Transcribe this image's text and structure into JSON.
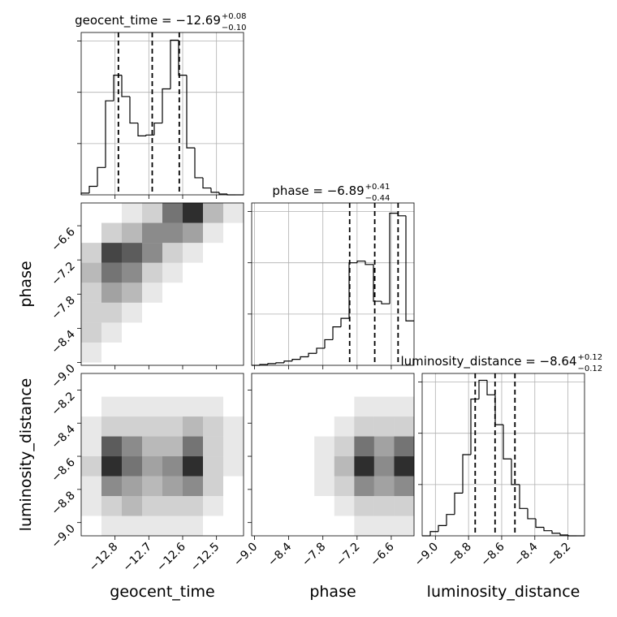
{
  "chart_data": [
    {
      "type": "histogram",
      "title": "geocent_time = −12.69",
      "title_sup": "+0.08",
      "title_sub": "−0.10",
      "bins": [
        -12.9,
        -12.876,
        -12.852,
        -12.828,
        -12.804,
        -12.78,
        -12.756,
        -12.732,
        -12.708,
        -12.684,
        -12.66,
        -12.636,
        -12.612,
        -12.588,
        -12.564,
        -12.54,
        -12.516,
        -12.492,
        -12.468,
        -12.444,
        -12.42
      ],
      "counts": [
        2,
        10,
        32,
        110,
        140,
        115,
        84,
        69,
        70,
        84,
        124,
        181,
        140,
        55,
        20,
        8,
        3,
        1,
        0,
        0
      ],
      "quantiles": [
        -12.79,
        -12.69,
        -12.61
      ],
      "xlim": [
        -12.9,
        -12.42
      ],
      "xticks": [
        -12.8,
        -12.7,
        -12.6,
        -12.5
      ],
      "ylim": [
        0,
        190
      ],
      "yticks": [
        60,
        120,
        180
      ],
      "grid": true
    },
    {
      "type": "hist2d",
      "ylabel": "phase",
      "xbins": [
        -12.9,
        -12.84,
        -12.78,
        -12.72,
        -12.66,
        -12.6,
        -12.54,
        -12.48,
        -12.42
      ],
      "ybins": [
        -9.0,
        -8.65,
        -8.3,
        -7.95,
        -7.6,
        -7.25,
        -6.9,
        -6.55,
        -6.2
      ],
      "z": [
        [
          1,
          0,
          0,
          0,
          0,
          0,
          0,
          0
        ],
        [
          2,
          1,
          0,
          0,
          0,
          0,
          0,
          0
        ],
        [
          2,
          2,
          1,
          0,
          0,
          0,
          0,
          0
        ],
        [
          2,
          4,
          3,
          1,
          0,
          0,
          0,
          0
        ],
        [
          3,
          6,
          5,
          2,
          1,
          0,
          0,
          0
        ],
        [
          2,
          8,
          7,
          5,
          2,
          1,
          0,
          0
        ],
        [
          0,
          2,
          3,
          5,
          5,
          4,
          1,
          0
        ],
        [
          0,
          0,
          1,
          2,
          6,
          9,
          3,
          1
        ]
      ],
      "xlim": [
        -12.9,
        -12.42
      ],
      "xticks": [
        -12.8,
        -12.7,
        -12.6,
        -12.5
      ],
      "ylim": [
        -9.05,
        -6.2
      ],
      "yticks": [
        {
          "value": -9.0,
          "label": "−9.0"
        },
        {
          "value": -8.4,
          "label": "−8.4"
        },
        {
          "value": -7.8,
          "label": "−7.8"
        },
        {
          "value": -7.2,
          "label": "−7.2"
        },
        {
          "value": -6.6,
          "label": "−6.6"
        }
      ]
    },
    {
      "type": "histogram",
      "title": "phase = −6.89",
      "title_sup": "+0.41",
      "title_sub": "−0.44",
      "bins": [
        -9.05,
        -8.9075,
        -8.765,
        -8.6225,
        -8.48,
        -8.3375,
        -8.195,
        -8.0525,
        -7.91,
        -7.7675,
        -7.625,
        -7.4825,
        -7.34,
        -7.1975,
        -7.055,
        -6.9125,
        -6.77,
        -6.6275,
        -6.485,
        -6.3425,
        -6.2
      ],
      "counts": [
        0,
        1,
        2,
        3,
        5,
        7,
        10,
        14,
        20,
        30,
        45,
        55,
        120,
        122,
        118,
        75,
        72,
        178,
        175,
        52
      ],
      "quantiles": [
        -7.33,
        -6.89,
        -6.48
      ],
      "xlim": [
        -9.05,
        -6.2
      ],
      "xticks": [
        -9.0,
        -8.4,
        -7.8,
        -7.2,
        -6.6
      ],
      "ylim": [
        0,
        190
      ],
      "yticks": [
        60,
        120,
        180
      ],
      "grid": true
    },
    {
      "type": "hist2d",
      "ylabel": "luminosity_distance",
      "xlabel": "geocent_time",
      "xbins": [
        -12.9,
        -12.84,
        -12.78,
        -12.72,
        -12.66,
        -12.6,
        -12.54,
        -12.48,
        -12.42
      ],
      "ybins": [
        -9.08,
        -8.96,
        -8.84,
        -8.72,
        -8.6,
        -8.48,
        -8.36,
        -8.24,
        -8.12
      ],
      "z": [
        [
          0,
          1,
          1,
          1,
          1,
          1,
          0,
          0
        ],
        [
          1,
          2,
          3,
          2,
          2,
          2,
          1,
          0
        ],
        [
          1,
          5,
          4,
          3,
          4,
          5,
          2,
          0
        ],
        [
          2,
          9,
          6,
          4,
          5,
          9,
          2,
          1
        ],
        [
          1,
          7,
          5,
          3,
          3,
          6,
          2,
          1
        ],
        [
          1,
          2,
          2,
          2,
          2,
          3,
          2,
          1
        ],
        [
          0,
          1,
          1,
          1,
          1,
          1,
          1,
          0
        ],
        [
          0,
          0,
          0,
          0,
          0,
          0,
          0,
          0
        ]
      ],
      "xlim": [
        -12.9,
        -12.42
      ],
      "xticks": [
        {
          "value": -12.8,
          "label": "−12.8"
        },
        {
          "value": -12.7,
          "label": "−12.7"
        },
        {
          "value": -12.6,
          "label": "−12.6"
        },
        {
          "value": -12.5,
          "label": "−12.5"
        }
      ],
      "ylim": [
        -9.08,
        -8.1
      ],
      "yticks": [
        {
          "value": -9.0,
          "label": "−9.0"
        },
        {
          "value": -8.8,
          "label": "−8.8"
        },
        {
          "value": -8.6,
          "label": "−8.6"
        },
        {
          "value": -8.4,
          "label": "−8.4"
        },
        {
          "value": -8.2,
          "label": "−8.2"
        }
      ]
    },
    {
      "type": "hist2d",
      "xlabel": "phase",
      "xbins": [
        -9.0,
        -8.65,
        -8.3,
        -7.95,
        -7.6,
        -7.25,
        -6.9,
        -6.55,
        -6.2
      ],
      "ybins": [
        -9.08,
        -8.96,
        -8.84,
        -8.72,
        -8.6,
        -8.48,
        -8.36,
        -8.24,
        -8.12
      ],
      "z": [
        [
          0,
          0,
          0,
          0,
          0,
          1,
          1,
          1
        ],
        [
          0,
          0,
          0,
          0,
          1,
          2,
          2,
          2
        ],
        [
          0,
          0,
          0,
          1,
          2,
          5,
          4,
          5
        ],
        [
          0,
          0,
          0,
          1,
          3,
          9,
          5,
          9
        ],
        [
          0,
          0,
          0,
          1,
          2,
          6,
          4,
          6
        ],
        [
          0,
          0,
          0,
          0,
          1,
          2,
          2,
          2
        ],
        [
          0,
          0,
          0,
          0,
          0,
          1,
          1,
          1
        ],
        [
          0,
          0,
          0,
          0,
          0,
          0,
          0,
          0
        ]
      ],
      "xlim": [
        -9.05,
        -6.2
      ],
      "xticks": [
        {
          "value": -9.0,
          "label": "−9.0"
        },
        {
          "value": -8.4,
          "label": "−8.4"
        },
        {
          "value": -7.8,
          "label": "−7.8"
        },
        {
          "value": -7.2,
          "label": "−7.2"
        },
        {
          "value": -6.6,
          "label": "−6.6"
        }
      ],
      "ylim": [
        -9.08,
        -8.1
      ],
      "yticks": [
        -9.0,
        -8.8,
        -8.6,
        -8.4,
        -8.2
      ]
    },
    {
      "type": "histogram",
      "title": "luminosity_distance = −8.64",
      "title_sup": "+0.12",
      "title_sub": "−0.12",
      "xlabel": "luminosity_distance",
      "bins": [
        -9.08,
        -9.031,
        -8.982,
        -8.933,
        -8.884,
        -8.835,
        -8.786,
        -8.737,
        -8.688,
        -8.639,
        -8.59,
        -8.541,
        -8.492,
        -8.443,
        -8.394,
        -8.345,
        -8.296,
        -8.247,
        -8.198,
        -8.149,
        -8.1
      ],
      "counts": [
        0,
        5,
        12,
        25,
        50,
        95,
        160,
        182,
        165,
        130,
        90,
        60,
        32,
        20,
        10,
        6,
        3,
        1,
        0,
        0
      ],
      "quantiles": [
        -8.76,
        -8.64,
        -8.52
      ],
      "xlim": [
        -9.08,
        -8.1
      ],
      "xticks": [
        {
          "value": -9.0,
          "label": "−9.0"
        },
        {
          "value": -8.8,
          "label": "−8.8"
        },
        {
          "value": -8.6,
          "label": "−8.6"
        },
        {
          "value": -8.4,
          "label": "−8.4"
        },
        {
          "value": -8.2,
          "label": "−8.2"
        }
      ],
      "ylim": [
        0,
        190
      ],
      "yticks": [
        60,
        120,
        180
      ],
      "grid": true
    }
  ]
}
